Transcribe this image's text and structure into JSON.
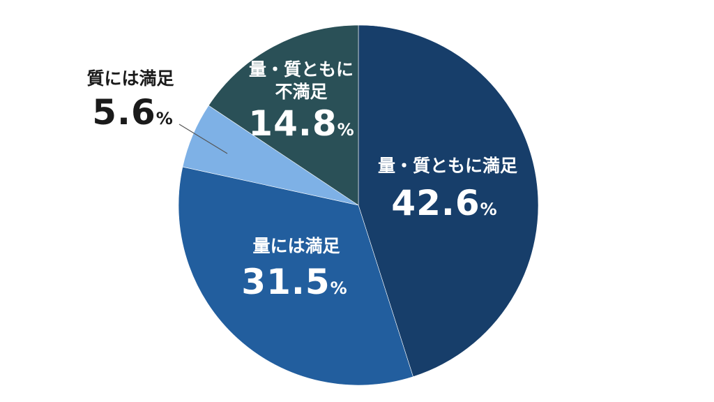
{
  "chart_data": {
    "type": "pie",
    "title": "",
    "start_angle": "12 o'clock, clockwise",
    "slices": [
      {
        "label": "量・質ともに満足",
        "value": 42.6,
        "display": "42.6",
        "unit": "%",
        "color": "#173e6a",
        "label_color": "#ffffff"
      },
      {
        "label": "量には満足",
        "value": 31.5,
        "display": "31.5",
        "unit": "%",
        "color": "#225e9e",
        "label_color": "#ffffff"
      },
      {
        "label": "質には満足",
        "value": 5.6,
        "display": "5.6",
        "unit": "%",
        "color": "#7eb1e6",
        "label_color": "#1a1a1a"
      },
      {
        "label_lines": [
          "量・質ともに",
          "不満足"
        ],
        "value": 14.8,
        "display": "14.8",
        "unit": "%",
        "color": "#2a5057",
        "label_color": "#ffffff"
      }
    ]
  }
}
